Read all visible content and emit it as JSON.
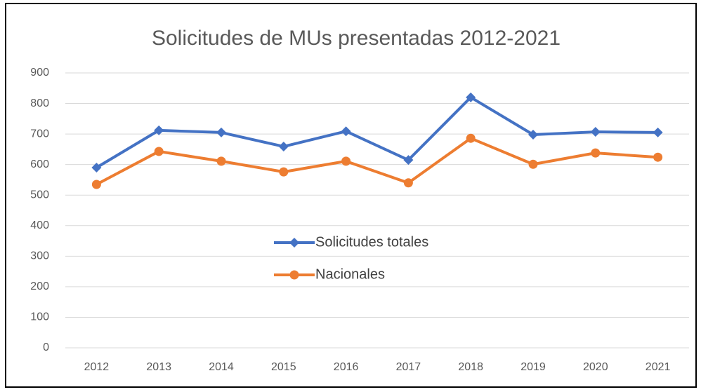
{
  "chart_data": {
    "type": "line",
    "title": "Solicitudes de MUs presentadas 2012-2021",
    "categories": [
      "2012",
      "2013",
      "2014",
      "2015",
      "2016",
      "2017",
      "2018",
      "2019",
      "2020",
      "2021"
    ],
    "series": [
      {
        "name": "Solicitudes totales",
        "color": "#4472c4",
        "marker": "diamond",
        "values": [
          590,
          712,
          705,
          659,
          709,
          615,
          820,
          698,
          707,
          705
        ]
      },
      {
        "name": "Nacionales",
        "color": "#ed7d31",
        "marker": "circle",
        "values": [
          535,
          643,
          611,
          576,
          611,
          540,
          686,
          601,
          638,
          624
        ]
      }
    ],
    "ylim": [
      0,
      900
    ],
    "yticks": [
      0,
      100,
      200,
      300,
      400,
      500,
      600,
      700,
      800,
      900
    ],
    "grid": true,
    "legend": "center"
  }
}
